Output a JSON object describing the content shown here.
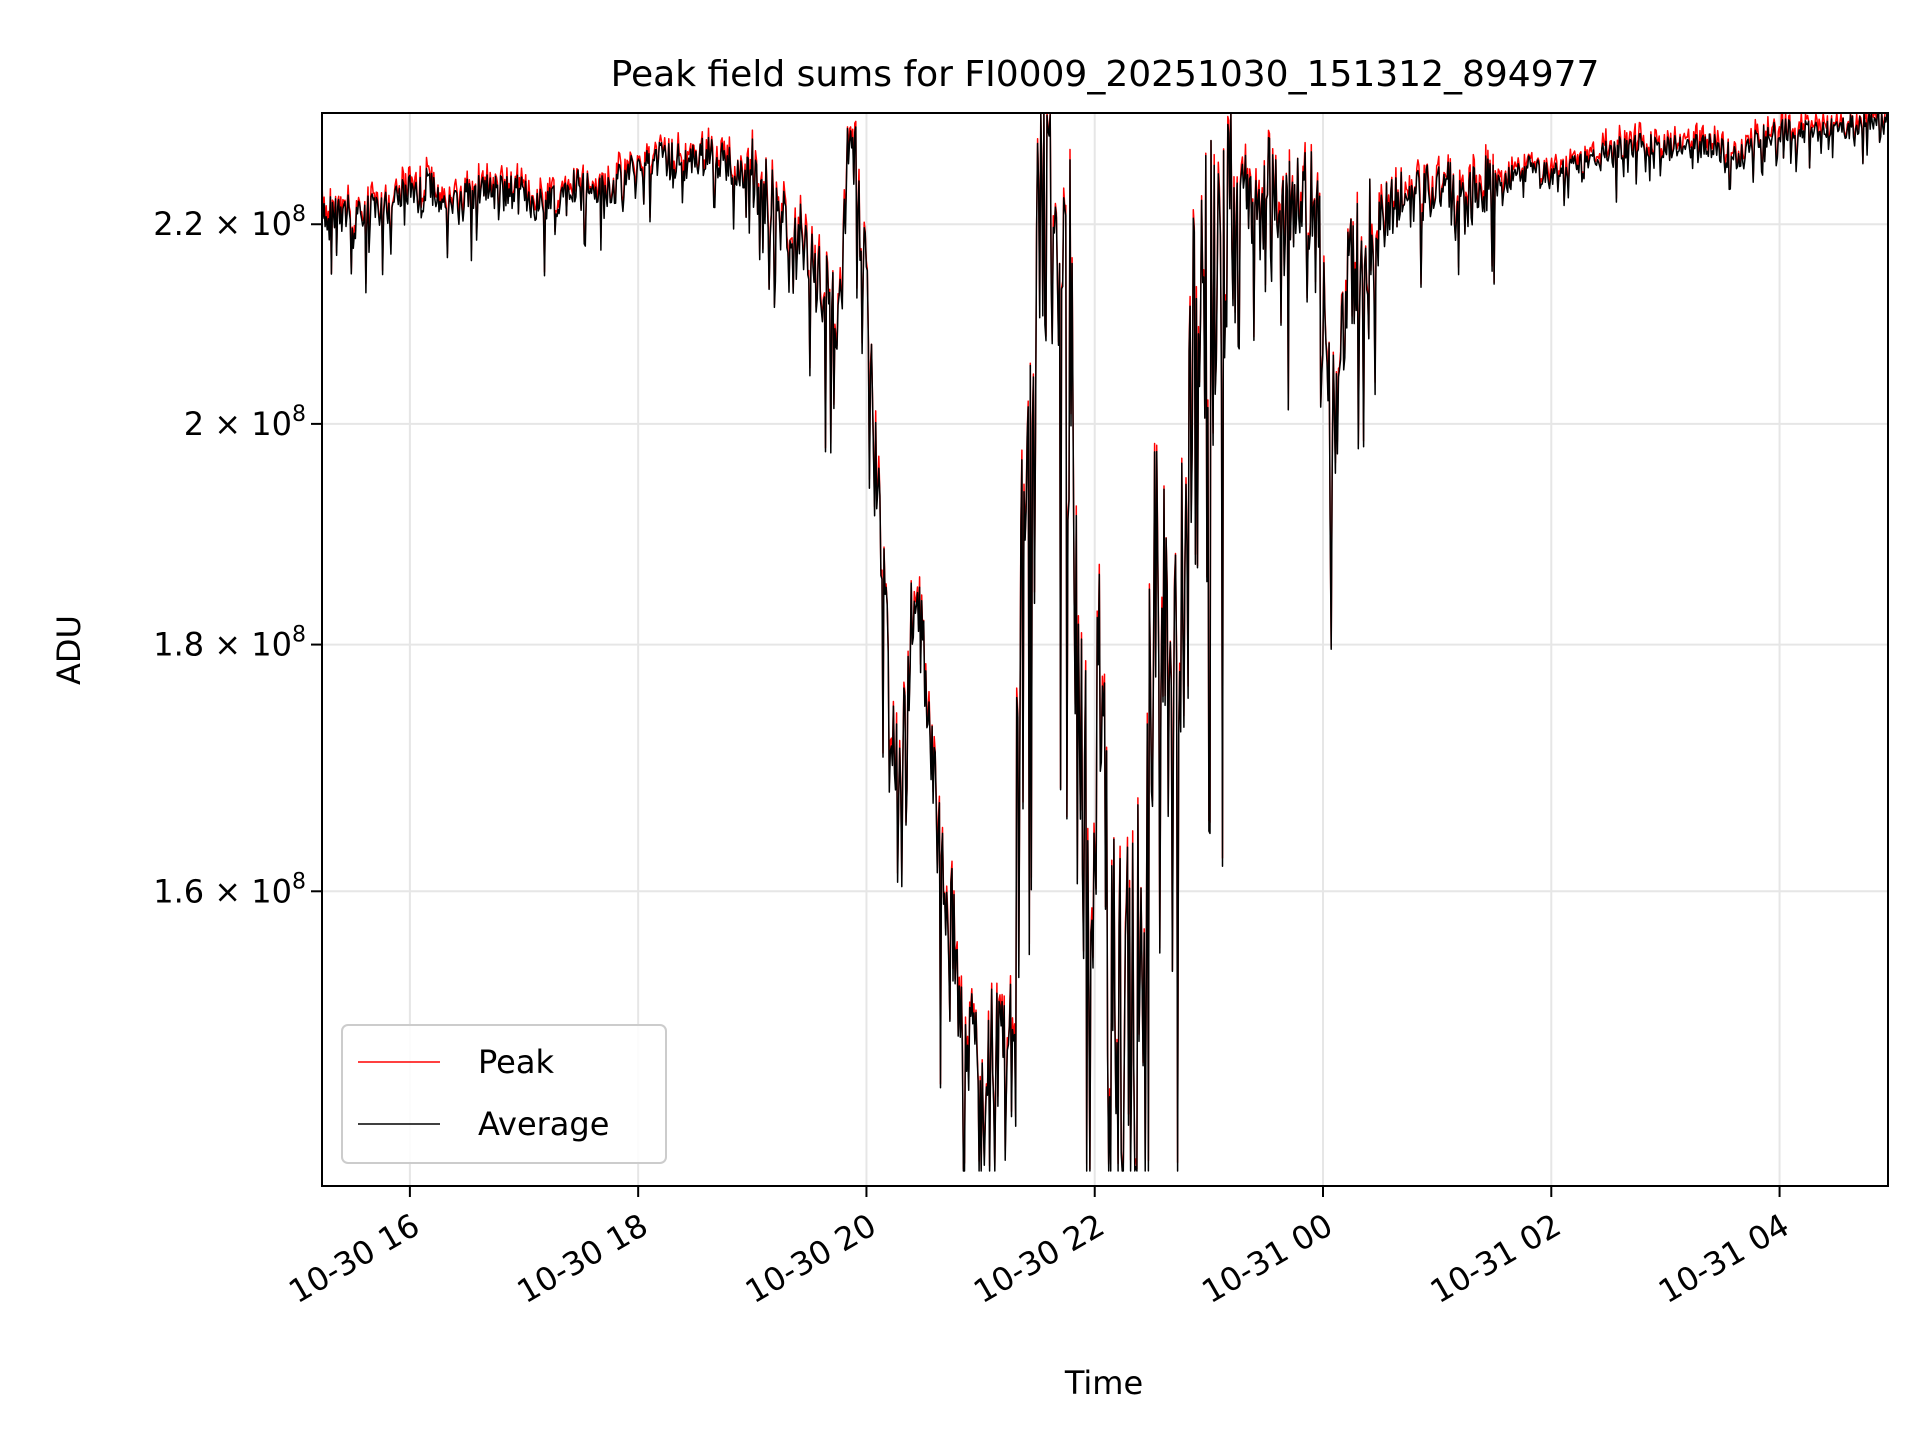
{
  "chart_data": {
    "type": "line",
    "title": "Peak field sums for FI0009_20251030_151312_894977",
    "xlabel": "Time",
    "ylabel": "ADU",
    "yscale": "log",
    "xlim": [
      15.23,
      28.95
    ],
    "ylim": [
      139000000,
      232000000
    ],
    "grid": true,
    "legend_position": "lower-left",
    "x_units": "hours since 2025-10-30 00:00",
    "x_ticks": [
      {
        "value": 16,
        "label": "10-30 16"
      },
      {
        "value": 18,
        "label": "10-30 18"
      },
      {
        "value": 20,
        "label": "10-30 20"
      },
      {
        "value": 22,
        "label": "10-30 22"
      },
      {
        "value": 24,
        "label": "10-31 00"
      },
      {
        "value": 26,
        "label": "10-31 02"
      },
      {
        "value": 28,
        "label": "10-31 04"
      }
    ],
    "y_ticks": [
      {
        "value": 160000000,
        "label": "1.6 × 10",
        "exp": "8"
      },
      {
        "value": 180000000,
        "label": "1.8 × 10",
        "exp": "8"
      },
      {
        "value": 200000000,
        "label": "2 × 10",
        "exp": "8"
      },
      {
        "value": 220000000,
        "label": "2.2 × 10",
        "exp": "8"
      }
    ],
    "anchors": [
      [
        15.23,
        221.5
      ],
      [
        15.5,
        221.0
      ],
      [
        15.8,
        222.0
      ],
      [
        16.0,
        223.5
      ],
      [
        16.2,
        224.0
      ],
      [
        16.4,
        221.5
      ],
      [
        16.6,
        224.0
      ],
      [
        16.8,
        223.5
      ],
      [
        17.0,
        223.0
      ],
      [
        17.2,
        221.5
      ],
      [
        17.4,
        224.5
      ],
      [
        17.6,
        223.5
      ],
      [
        17.8,
        224.0
      ],
      [
        18.0,
        226.0
      ],
      [
        18.2,
        227.0
      ],
      [
        18.4,
        226.5
      ],
      [
        18.6,
        227.5
      ],
      [
        18.8,
        226.5
      ],
      [
        19.0,
        225.5
      ],
      [
        19.2,
        221.0
      ],
      [
        19.4,
        218.5
      ],
      [
        19.6,
        213.5
      ],
      [
        19.75,
        211.0
      ],
      [
        19.85,
        229.5
      ],
      [
        19.92,
        226.0
      ],
      [
        20.0,
        213.5
      ],
      [
        20.1,
        193.0
      ],
      [
        20.2,
        176.0
      ],
      [
        20.3,
        171.0
      ],
      [
        20.4,
        182.0
      ],
      [
        20.5,
        180.0
      ],
      [
        20.6,
        167.0
      ],
      [
        20.7,
        160.0
      ],
      [
        20.8,
        154.0
      ],
      [
        20.9,
        149.0
      ],
      [
        21.0,
        147.0
      ],
      [
        21.1,
        148.0
      ],
      [
        21.2,
        150.0
      ],
      [
        21.3,
        148.0
      ],
      [
        21.35,
        185.0
      ],
      [
        21.45,
        212.0
      ],
      [
        21.55,
        223.0
      ],
      [
        21.7,
        215.0
      ],
      [
        21.8,
        212.0
      ],
      [
        21.85,
        170.0
      ],
      [
        21.95,
        168.0
      ],
      [
        22.05,
        172.0
      ],
      [
        22.15,
        150.0
      ],
      [
        22.25,
        147.0
      ],
      [
        22.35,
        151.0
      ],
      [
        22.45,
        163.0
      ],
      [
        22.55,
        195.0
      ],
      [
        22.65,
        168.0
      ],
      [
        22.75,
        178.0
      ],
      [
        22.85,
        210.0
      ],
      [
        22.95,
        215.0
      ],
      [
        23.1,
        218.0
      ],
      [
        23.3,
        224.0
      ],
      [
        23.5,
        223.0
      ],
      [
        23.7,
        220.0
      ],
      [
        23.9,
        222.0
      ],
      [
        24.0,
        215.0
      ],
      [
        24.1,
        198.0
      ],
      [
        24.2,
        213.0
      ],
      [
        24.4,
        218.5
      ],
      [
        24.6,
        222.0
      ],
      [
        24.8,
        223.0
      ],
      [
        25.0,
        224.5
      ],
      [
        25.2,
        222.0
      ],
      [
        25.4,
        224.0
      ],
      [
        25.6,
        224.5
      ],
      [
        25.8,
        226.0
      ],
      [
        26.0,
        225.0
      ],
      [
        26.2,
        226.5
      ],
      [
        26.4,
        227.5
      ],
      [
        26.6,
        228.0
      ],
      [
        26.8,
        228.5
      ],
      [
        27.0,
        228.0
      ],
      [
        27.2,
        228.5
      ],
      [
        27.4,
        228.5
      ],
      [
        27.6,
        227.0
      ],
      [
        27.8,
        229.0
      ],
      [
        28.0,
        230.0
      ],
      [
        28.2,
        230.0
      ],
      [
        28.4,
        230.0
      ],
      [
        28.6,
        230.5
      ],
      [
        28.8,
        231.5
      ],
      [
        28.95,
        232.0
      ]
    ],
    "anchor_units": "millions of ADU",
    "series": [
      {
        "name": "Peak",
        "color": "#ff0000"
      },
      {
        "name": "Average",
        "color": "#000000"
      }
    ]
  }
}
